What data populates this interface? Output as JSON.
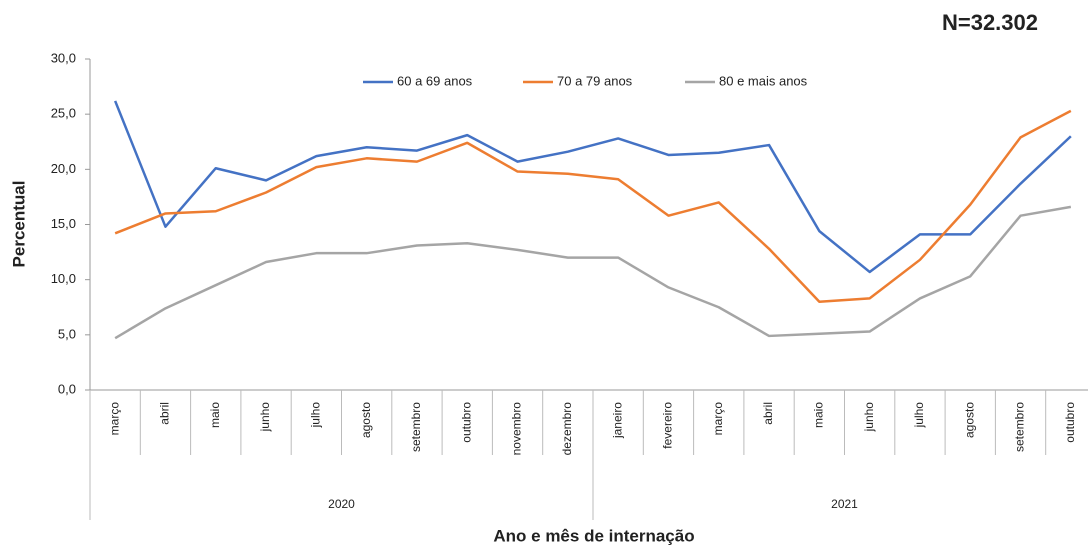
{
  "chart_data": {
    "type": "line",
    "annotation": "N=32.302",
    "x_label": "Ano e mês de internação",
    "y_label": "Percentual",
    "category_groups": [
      {
        "name": "2020",
        "categories": [
          "março",
          "abril",
          "maio",
          "junho",
          "julho",
          "agosto",
          "setembro",
          "outubro",
          "novembro",
          "dezembro"
        ]
      },
      {
        "name": "2021",
        "categories": [
          "janeiro",
          "fevereiro",
          "março",
          "abril",
          "maio",
          "junho",
          "julho",
          "agosto",
          "setembro",
          "outubro"
        ]
      }
    ],
    "series": [
      {
        "name": "60 a 69 anos",
        "color": "#4472c4",
        "values": [
          26.2,
          14.8,
          20.1,
          19.0,
          21.2,
          22.0,
          21.7,
          23.1,
          20.7,
          21.6,
          22.8,
          21.3,
          21.5,
          22.2,
          14.4,
          10.7,
          14.1,
          14.1,
          18.7,
          23.0
        ]
      },
      {
        "name": "70 a 79 anos",
        "color": "#ed7d31",
        "values": [
          14.2,
          16.0,
          16.2,
          17.9,
          20.2,
          21.0,
          20.7,
          22.4,
          19.8,
          19.6,
          19.1,
          15.8,
          17.0,
          12.8,
          8.0,
          8.3,
          11.8,
          16.8,
          22.9,
          25.3
        ]
      },
      {
        "name": "80 e mais anos",
        "color": "#a5a5a5",
        "values": [
          4.7,
          7.4,
          9.5,
          11.6,
          12.4,
          12.4,
          13.1,
          13.3,
          12.7,
          12.0,
          12.0,
          9.3,
          7.5,
          4.9,
          5.1,
          5.3,
          8.3,
          10.3,
          15.8,
          16.6
        ]
      }
    ],
    "ylim": [
      0,
      30
    ],
    "yticks": [
      {
        "value": 0,
        "label": "0,0"
      },
      {
        "value": 5,
        "label": "5,0"
      },
      {
        "value": 10,
        "label": "10,0"
      },
      {
        "value": 15,
        "label": "15,0"
      },
      {
        "value": 20,
        "label": "20,0"
      },
      {
        "value": 25,
        "label": "25,0"
      },
      {
        "value": 30,
        "label": "30,0"
      }
    ],
    "legend": "top"
  }
}
